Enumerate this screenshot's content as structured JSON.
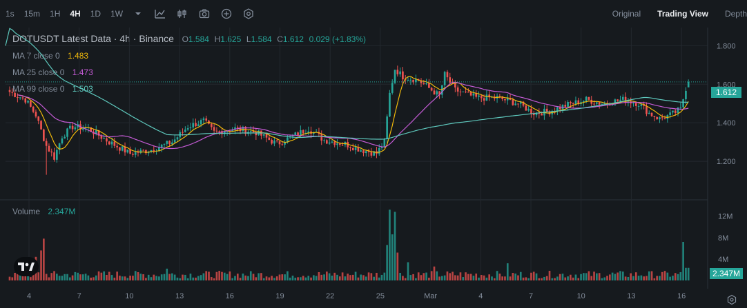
{
  "toolbar": {
    "timeframes": [
      "1s",
      "15m",
      "1H",
      "4H",
      "1D",
      "1W"
    ],
    "active_timeframe": "4H",
    "icons": [
      "chevron-down-icon",
      "indicator-icon",
      "chart-settings-icon",
      "camera-icon",
      "add-icon",
      "gear-icon"
    ],
    "views": [
      "Original",
      "Trading View",
      "Depth"
    ],
    "active_view": "Trading View"
  },
  "legend": {
    "title": "DOTUSDT Latest Data · 4h · Binance",
    "o_label": "O",
    "o": "1.584",
    "h_label": "H",
    "h": "1.625",
    "l_label": "L",
    "l": "1.584",
    "c_label": "C",
    "c": "1.612",
    "change": "0.029 (+1.83%)",
    "ma7_label": "MA 7 close 0",
    "ma7": "1.483",
    "ma25_label": "MA 25 close 0",
    "ma25": "1.473",
    "ma99_label": "MA 99 close 0",
    "ma99": "1.503",
    "volume_label": "Volume",
    "volume": "2.347M"
  },
  "price_tag": "1.612",
  "volume_tag": "2.347M",
  "colors": {
    "up": "#26a69a",
    "down": "#ef5350",
    "ma7": "#f0b90b",
    "ma25": "#c55bd6",
    "ma99": "#5ec8bd",
    "grid": "#23282e",
    "text": "#848e9c"
  },
  "chart_data": {
    "type": "candlestick",
    "pair": "DOTUSDT",
    "interval": "4h",
    "price_axis": {
      "ticks": [
        1.2,
        1.4,
        1.6,
        1.8
      ],
      "range": [
        1.05,
        1.88
      ]
    },
    "volume_axis": {
      "ticks_label": [
        "4M",
        "8M",
        "12M"
      ],
      "ticks": [
        4,
        8,
        12
      ],
      "range": [
        0,
        13.5
      ],
      "unit": "M"
    },
    "x_ticks": [
      "4",
      "7",
      "10",
      "13",
      "16",
      "19",
      "22",
      "25",
      "Mar",
      "4",
      "7",
      "10",
      "13",
      "16"
    ],
    "candles_per_day": 6,
    "start_offset_days": -1.25,
    "key_closes": [
      [
        0,
        1.56
      ],
      [
        6,
        1.52
      ],
      [
        10,
        1.44
      ],
      [
        14,
        1.28
      ],
      [
        17,
        1.22
      ],
      [
        20,
        1.33
      ],
      [
        24,
        1.38
      ],
      [
        30,
        1.37
      ],
      [
        38,
        1.3
      ],
      [
        46,
        1.24
      ],
      [
        54,
        1.26
      ],
      [
        62,
        1.3
      ],
      [
        68,
        1.38
      ],
      [
        74,
        1.41
      ],
      [
        78,
        1.35
      ],
      [
        86,
        1.37
      ],
      [
        94,
        1.35
      ],
      [
        102,
        1.29
      ],
      [
        108,
        1.33
      ],
      [
        114,
        1.37
      ],
      [
        120,
        1.31
      ],
      [
        128,
        1.29
      ],
      [
        134,
        1.26
      ],
      [
        140,
        1.24
      ],
      [
        143,
        1.3
      ],
      [
        145,
        1.55
      ],
      [
        147,
        1.68
      ],
      [
        150,
        1.64
      ],
      [
        156,
        1.62
      ],
      [
        160,
        1.58
      ],
      [
        164,
        1.54
      ],
      [
        166,
        1.65
      ],
      [
        170,
        1.57
      ],
      [
        178,
        1.53
      ],
      [
        186,
        1.53
      ],
      [
        194,
        1.5
      ],
      [
        200,
        1.45
      ],
      [
        206,
        1.46
      ],
      [
        212,
        1.49
      ],
      [
        220,
        1.52
      ],
      [
        226,
        1.5
      ],
      [
        234,
        1.52
      ],
      [
        240,
        1.5
      ],
      [
        244,
        1.45
      ],
      [
        248,
        1.42
      ],
      [
        252,
        1.44
      ],
      [
        256,
        1.47
      ],
      [
        258,
        1.58
      ],
      [
        259,
        1.612
      ]
    ],
    "volume_spikes": [
      [
        13,
        7.8
      ],
      [
        12,
        5.6
      ],
      [
        10,
        4.4
      ],
      [
        4,
        3.2
      ],
      [
        60,
        2.2
      ],
      [
        145,
        13.2
      ],
      [
        146,
        8.6
      ],
      [
        147,
        12.8
      ],
      [
        144,
        6.6
      ],
      [
        148,
        5.2
      ],
      [
        152,
        3.4
      ],
      [
        162,
        2.6
      ],
      [
        190,
        3.2
      ],
      [
        257,
        7.2
      ],
      [
        258,
        2.347
      ]
    ],
    "last_volume": 2.347
  }
}
